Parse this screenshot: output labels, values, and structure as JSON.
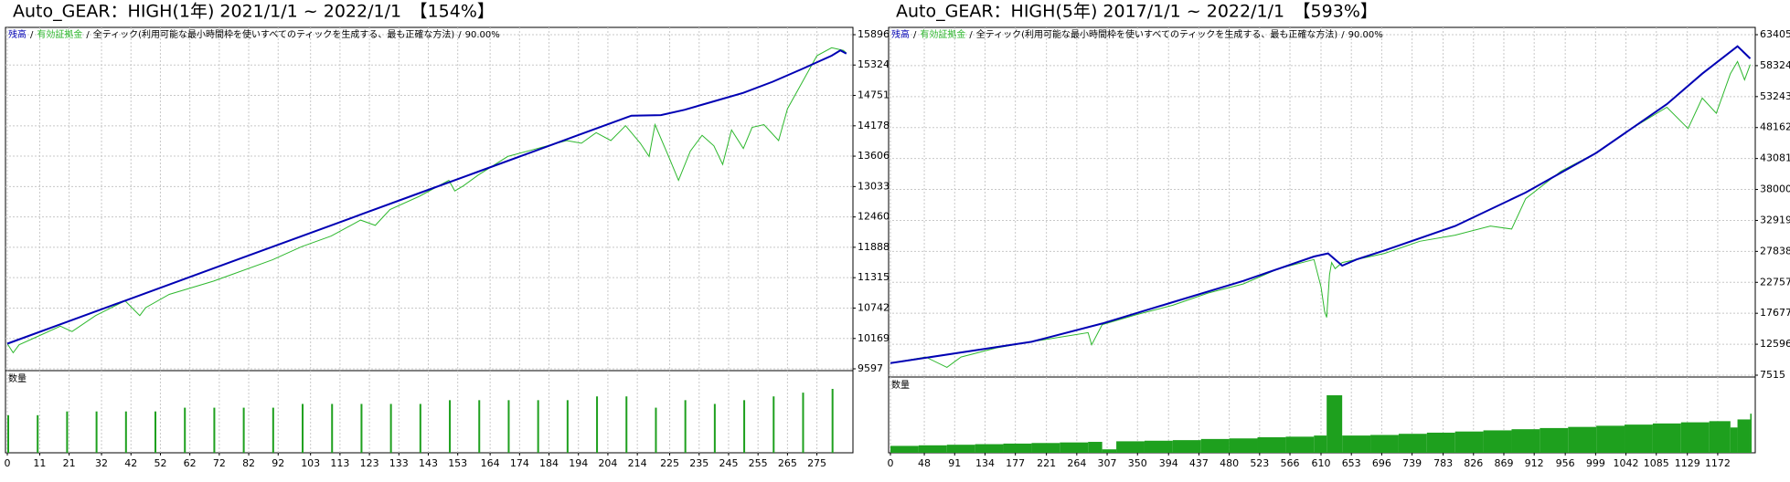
{
  "chart_data": [
    {
      "type": "line",
      "title": "Auto_GEAR：HIGH(1年) 2021/1/1 ~ 2022/1/1　【154%】",
      "legend_separator": "/",
      "model": "全ティック(利用可能な最小時間枠を使いすべてのティックを生成する、最も正確な方法)",
      "quality": "90.00%",
      "xlim": [
        0,
        286
      ],
      "xticks": [
        0,
        11,
        21,
        32,
        42,
        52,
        62,
        72,
        82,
        92,
        103,
        113,
        123,
        133,
        143,
        153,
        164,
        174,
        184,
        194,
        204,
        214,
        225,
        235,
        245,
        255,
        265,
        275
      ],
      "ylim": [
        9597,
        15896
      ],
      "yticks": [
        9597,
        10169,
        10742,
        11315,
        11888,
        12460,
        13033,
        13606,
        14178,
        14751,
        15324,
        15896
      ],
      "grid": true,
      "series": [
        {
          "name": "残高",
          "color": "#0000b4",
          "x": [
            0,
            20,
            40,
            60,
            80,
            100,
            120,
            140,
            160,
            180,
            200,
            212,
            222,
            230,
            240,
            250,
            260,
            270,
            280,
            283,
            285
          ],
          "values": [
            10070,
            10476,
            10881,
            11287,
            11693,
            12098,
            12504,
            12910,
            13315,
            13721,
            14127,
            14370,
            14380,
            14480,
            14640,
            14800,
            15010,
            15250,
            15500,
            15600,
            15540
          ]
        },
        {
          "name": "有効証拠金",
          "color": "#2eb82e",
          "x": [
            0,
            2,
            4,
            10,
            18,
            22,
            30,
            40,
            45,
            47,
            55,
            70,
            90,
            100,
            110,
            120,
            125,
            130,
            140,
            150,
            152,
            155,
            160,
            170,
            180,
            190,
            195,
            200,
            205,
            210,
            215,
            218,
            220,
            225,
            228,
            232,
            236,
            240,
            243,
            246,
            250,
            253,
            257,
            262,
            265,
            270,
            275,
            280,
            284,
            285
          ],
          "values": [
            10070,
            9900,
            10050,
            10200,
            10400,
            10300,
            10600,
            10880,
            10600,
            10750,
            11000,
            11250,
            11650,
            11900,
            12100,
            12400,
            12300,
            12600,
            12850,
            13150,
            12950,
            13050,
            13250,
            13600,
            13750,
            13900,
            13850,
            14050,
            13900,
            14180,
            13850,
            13600,
            14200,
            13550,
            13150,
            13700,
            14000,
            13800,
            13450,
            14100,
            13750,
            14150,
            14200,
            13900,
            14500,
            15000,
            15500,
            15650,
            15600,
            15550
          ]
        }
      ],
      "volume": {
        "name": "数量",
        "color": "#1ea01e",
        "x": [
          0,
          10,
          20,
          30,
          40,
          50,
          60,
          70,
          80,
          90,
          100,
          110,
          120,
          130,
          140,
          150,
          160,
          170,
          180,
          190,
          200,
          210,
          220,
          230,
          240,
          250,
          260,
          270,
          280
        ],
        "values": [
          0.1,
          0.1,
          0.11,
          0.11,
          0.11,
          0.11,
          0.12,
          0.12,
          0.12,
          0.12,
          0.13,
          0.13,
          0.13,
          0.13,
          0.13,
          0.14,
          0.14,
          0.14,
          0.14,
          0.14,
          0.15,
          0.15,
          0.12,
          0.14,
          0.13,
          0.14,
          0.15,
          0.16,
          0.17
        ]
      }
    },
    {
      "type": "line",
      "title": "Auto_GEAR：HIGH(5年) 2017/1/1 ~ 2022/1/1　【593%】",
      "legend_separator": "/",
      "model": "全ティック(利用可能な最小時間枠を使いすべてのティックを生成する、最も正確な方法)",
      "quality": "90.00%",
      "xlim": [
        0,
        1220
      ],
      "xticks": [
        0,
        48,
        91,
        134,
        177,
        221,
        264,
        307,
        350,
        394,
        437,
        480,
        523,
        566,
        610,
        653,
        696,
        739,
        783,
        826,
        869,
        912,
        956,
        999,
        1042,
        1085,
        1129,
        1172
      ],
      "ylim": [
        7515,
        63405
      ],
      "yticks": [
        7515,
        12596,
        17677,
        22757,
        27838,
        32919,
        38000,
        43081,
        48162,
        53243,
        58324,
        63405
      ],
      "grid": true,
      "series": [
        {
          "name": "残高",
          "color": "#0000b4",
          "x": [
            0,
            200,
            300,
            400,
            500,
            600,
            620,
            640,
            660,
            700,
            800,
            900,
            1000,
            1100,
            1150,
            1200,
            1218
          ],
          "values": [
            9500,
            13000,
            16000,
            19500,
            23000,
            27000,
            27500,
            25500,
            26500,
            28000,
            32000,
            37500,
            44000,
            52000,
            57000,
            61500,
            59500
          ]
        },
        {
          "name": "有効証拠金",
          "color": "#2eb82e",
          "x": [
            0,
            50,
            80,
            100,
            150,
            200,
            280,
            285,
            300,
            350,
            400,
            450,
            500,
            550,
            600,
            610,
            615,
            618,
            622,
            625,
            630,
            640,
            700,
            750,
            800,
            850,
            880,
            900,
            950,
            1000,
            1050,
            1100,
            1130,
            1150,
            1170,
            1190,
            1200,
            1210,
            1218
          ],
          "values": [
            9500,
            10500,
            8800,
            10500,
            12000,
            13000,
            14500,
            12500,
            15800,
            17500,
            19000,
            21000,
            22500,
            25000,
            26500,
            22000,
            18000,
            17000,
            24000,
            26000,
            25000,
            26000,
            27500,
            29500,
            30500,
            32000,
            31500,
            36500,
            41000,
            44000,
            48000,
            51500,
            48000,
            53000,
            50500,
            57000,
            59000,
            56000,
            58500
          ]
        }
      ],
      "volume": {
        "name": "数量",
        "color": "#1ea01e",
        "x": [
          0,
          40,
          80,
          120,
          160,
          200,
          240,
          280,
          300,
          320,
          360,
          400,
          440,
          480,
          520,
          560,
          600,
          618,
          640,
          680,
          720,
          760,
          800,
          840,
          880,
          920,
          960,
          1000,
          1040,
          1080,
          1120,
          1160,
          1190,
          1200,
          1218
        ],
        "values": [
          0.6,
          0.65,
          0.7,
          0.75,
          0.8,
          0.85,
          0.9,
          0.95,
          0.3,
          1.0,
          1.05,
          1.1,
          1.2,
          1.25,
          1.35,
          1.4,
          1.5,
          5.0,
          1.5,
          1.55,
          1.65,
          1.75,
          1.85,
          1.95,
          2.05,
          2.15,
          2.25,
          2.35,
          2.45,
          2.55,
          2.65,
          2.75,
          2.2,
          2.9,
          3.4
        ]
      }
    }
  ]
}
